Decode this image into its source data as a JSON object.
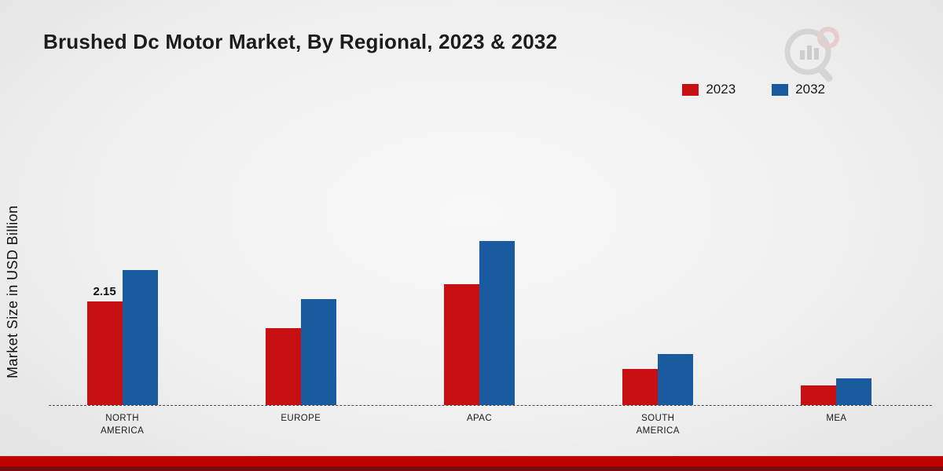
{
  "title": "Brushed Dc Motor Market, By Regional, 2023 & 2032",
  "ylabel": "Market Size in USD Billion",
  "legend": [
    {
      "label": "2023",
      "color": "#c80f12"
    },
    {
      "label": "2032",
      "color": "#1a5a9e"
    }
  ],
  "chart_data": {
    "type": "bar",
    "categories": [
      "NORTH AMERICA",
      "EUROPE",
      "APAC",
      "SOUTH AMERICA",
      "MEA"
    ],
    "series": [
      {
        "name": "2023",
        "color": "#c80f12",
        "values": [
          2.15,
          1.6,
          2.5,
          0.75,
          0.4
        ]
      },
      {
        "name": "2032",
        "color": "#1a5a9e",
        "values": [
          2.8,
          2.2,
          3.4,
          1.05,
          0.55
        ]
      }
    ],
    "annotations": [
      {
        "category": "NORTH AMERICA",
        "series": "2023",
        "text": "2.15"
      }
    ],
    "ylabel": "Market Size in USD Billion",
    "xlabel": "",
    "ylim": [
      0,
      3.5
    ],
    "grid": false,
    "legend_position": "top-right"
  },
  "footer": {
    "bar_color": "#c30000",
    "line_color": "#7a0b0b"
  }
}
